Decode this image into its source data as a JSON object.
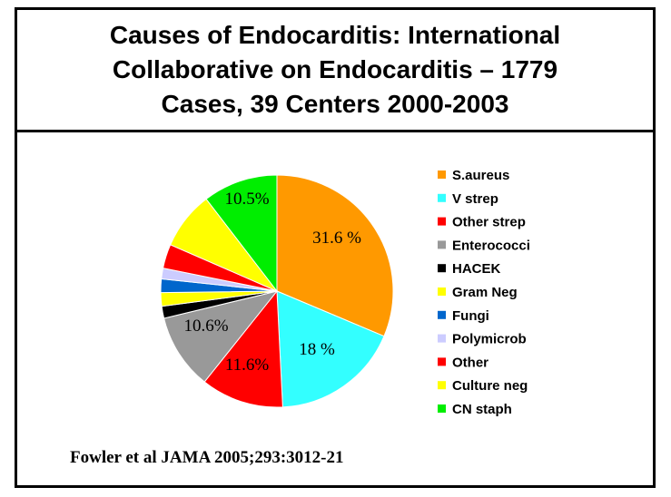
{
  "slide": {
    "title": "Causes  of  Endocarditis: International\nCollaborative on  Endocarditis – 1779\nCases, 39  Centers  2000-2003",
    "citation": "Fowler et al  JAMA 2005;293:3012-21"
  },
  "chart_data": {
    "type": "pie",
    "title": "",
    "legend_position": "right",
    "slices": [
      {
        "name": "S.aureus",
        "value": 31.6,
        "label": "31.6 %",
        "color": "#FF9900"
      },
      {
        "name": "V strep",
        "value": 18.0,
        "label": "18 %",
        "color": "#33FFFF"
      },
      {
        "name": "Other strep",
        "value": 11.6,
        "label": "11.6%",
        "color": "#FF0000"
      },
      {
        "name": "Enterococci",
        "value": 10.6,
        "label": "10.6%",
        "color": "#999999"
      },
      {
        "name": "HACEK",
        "value": 1.7,
        "label": "",
        "color": "#000000"
      },
      {
        "name": "Gram Neg",
        "value": 1.9,
        "label": "",
        "color": "#FFFF00"
      },
      {
        "name": "Fungi",
        "value": 1.9,
        "label": "",
        "color": "#0066CC"
      },
      {
        "name": "Polymicrob",
        "value": 1.5,
        "label": "",
        "color": "#CCCCFF"
      },
      {
        "name": "Other",
        "value": 3.4,
        "label": "",
        "color": "#FF0000"
      },
      {
        "name": "Culture neg",
        "value": 8.1,
        "label": "",
        "color": "#FFFF00"
      },
      {
        "name": "CN staph",
        "value": 10.5,
        "label": "10.5%",
        "color": "#00EE00"
      }
    ]
  }
}
